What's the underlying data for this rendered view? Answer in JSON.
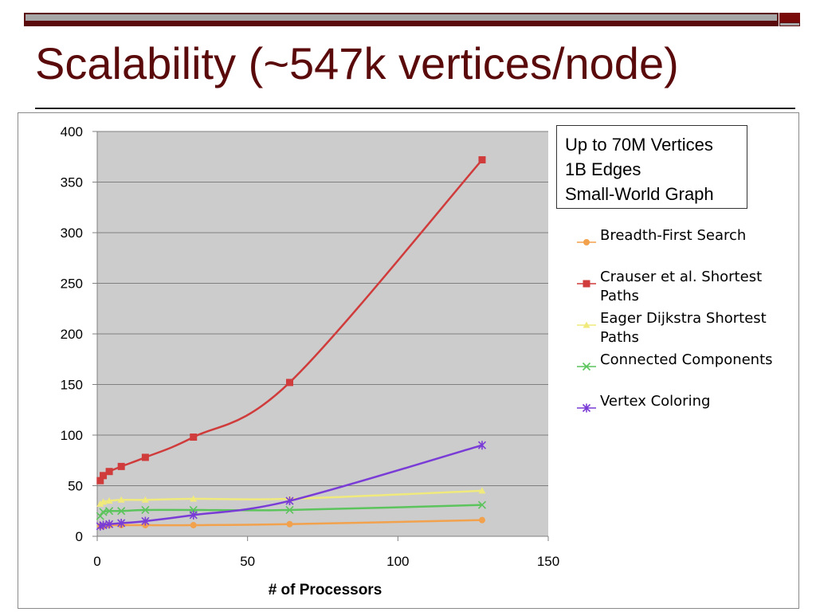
{
  "title": "Scalability (~547k vertices/node)",
  "annotation": [
    "Up to 70M Vertices",
    "1B Edges",
    "Small-World Graph"
  ],
  "colors": {
    "title": "#5a0a0a",
    "plot_background": "#cccccc"
  },
  "chart_data": {
    "type": "line",
    "title": "",
    "xlabel": "# of Processors",
    "ylabel": "",
    "xlim": [
      0,
      150
    ],
    "ylim": [
      0,
      400
    ],
    "x_ticks": [
      0,
      50,
      100,
      150
    ],
    "y_ticks": [
      0,
      50,
      100,
      150,
      200,
      250,
      300,
      350,
      400
    ],
    "grid": "horizontal",
    "legend_position": "right",
    "series": [
      {
        "name": "Breadth-First Search",
        "color": "#f2a14d",
        "marker": "circle",
        "x": [
          1,
          2,
          4,
          8,
          16,
          32,
          64,
          128
        ],
        "y": [
          10,
          10,
          11,
          11,
          11,
          11,
          12,
          16
        ]
      },
      {
        "name": "Crauser et al. Shortest Paths",
        "color": "#d03b3b",
        "marker": "square",
        "x": [
          1,
          2,
          4,
          8,
          16,
          32,
          64,
          128
        ],
        "y": [
          55,
          60,
          64,
          69,
          78,
          98,
          152,
          372
        ]
      },
      {
        "name": "Eager Dijkstra Shortest Paths",
        "color": "#f0ea7c",
        "marker": "triangle",
        "x": [
          1,
          2,
          4,
          8,
          16,
          32,
          64,
          128
        ],
        "y": [
          32,
          34,
          35,
          36,
          36,
          37,
          37,
          45
        ]
      },
      {
        "name": "Connected Components",
        "color": "#5cc45c",
        "marker": "x",
        "x": [
          1,
          2,
          4,
          8,
          16,
          32,
          64,
          128
        ],
        "y": [
          20,
          24,
          25,
          25,
          26,
          26,
          26,
          31
        ]
      },
      {
        "name": "Vertex Coloring",
        "color": "#7a3cd6",
        "marker": "star",
        "x": [
          1,
          2,
          4,
          8,
          16,
          32,
          64,
          128
        ],
        "y": [
          10,
          11,
          12,
          13,
          15,
          21,
          35,
          90
        ]
      }
    ]
  }
}
